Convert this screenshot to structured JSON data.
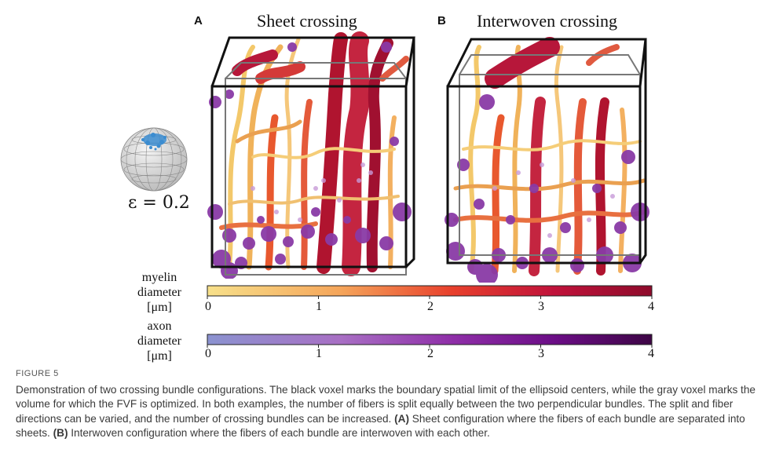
{
  "figure": {
    "panels": [
      {
        "letter": "A",
        "title": "Sheet crossing"
      },
      {
        "letter": "B",
        "title": "Interwoven crossing"
      }
    ],
    "epsilon_label": "ε = 0.2",
    "colorbars": {
      "myelin": {
        "label_line1": "myelin",
        "label_line2": "diameter",
        "label_line3": "[μm]",
        "ticks": [
          "0",
          "1",
          "2",
          "3",
          "4"
        ],
        "range": [
          0,
          4
        ],
        "colors": [
          "#f7e08a",
          "#f5a55a",
          "#e8402c",
          "#c0123a",
          "#8e0b2b"
        ]
      },
      "axon": {
        "label_line1": "axon",
        "label_line2": "diameter",
        "label_line3": "[μm]",
        "ticks": [
          "0",
          "1",
          "2",
          "3",
          "4"
        ],
        "range": [
          0,
          4
        ],
        "colors": [
          "#8b93d0",
          "#a86fc4",
          "#8f2fa8",
          "#6b0d86",
          "#3d0545"
        ]
      }
    },
    "colors": {
      "myelin_light": "#f3c86a",
      "myelin_mid": "#e8582e",
      "myelin_dark": "#b0142f",
      "axon": "#8a3aa6",
      "voxel_black": "#111111",
      "voxel_gray": "#777777",
      "sphere_dots": "#3b8cd0"
    }
  },
  "caption": {
    "figure_label": "FIGURE 5",
    "text_main": "Demonstration of two crossing bundle configurations. The black voxel marks the boundary spatial limit of the ellipsoid centers, while the gray voxel marks the volume for which the FVF is optimized. In both examples, the number of fibers is split equally between the two perpendicular bundles. The split and fiber directions can be varied, and the number of crossing bundles can be increased. ",
    "a_label": "(A)",
    "a_text": " Sheet configuration where the fibers of each bundle are separated into sheets. ",
    "b_label": "(B)",
    "b_text": " Interwoven configuration where the fibers of each bundle are interwoven with each other."
  }
}
